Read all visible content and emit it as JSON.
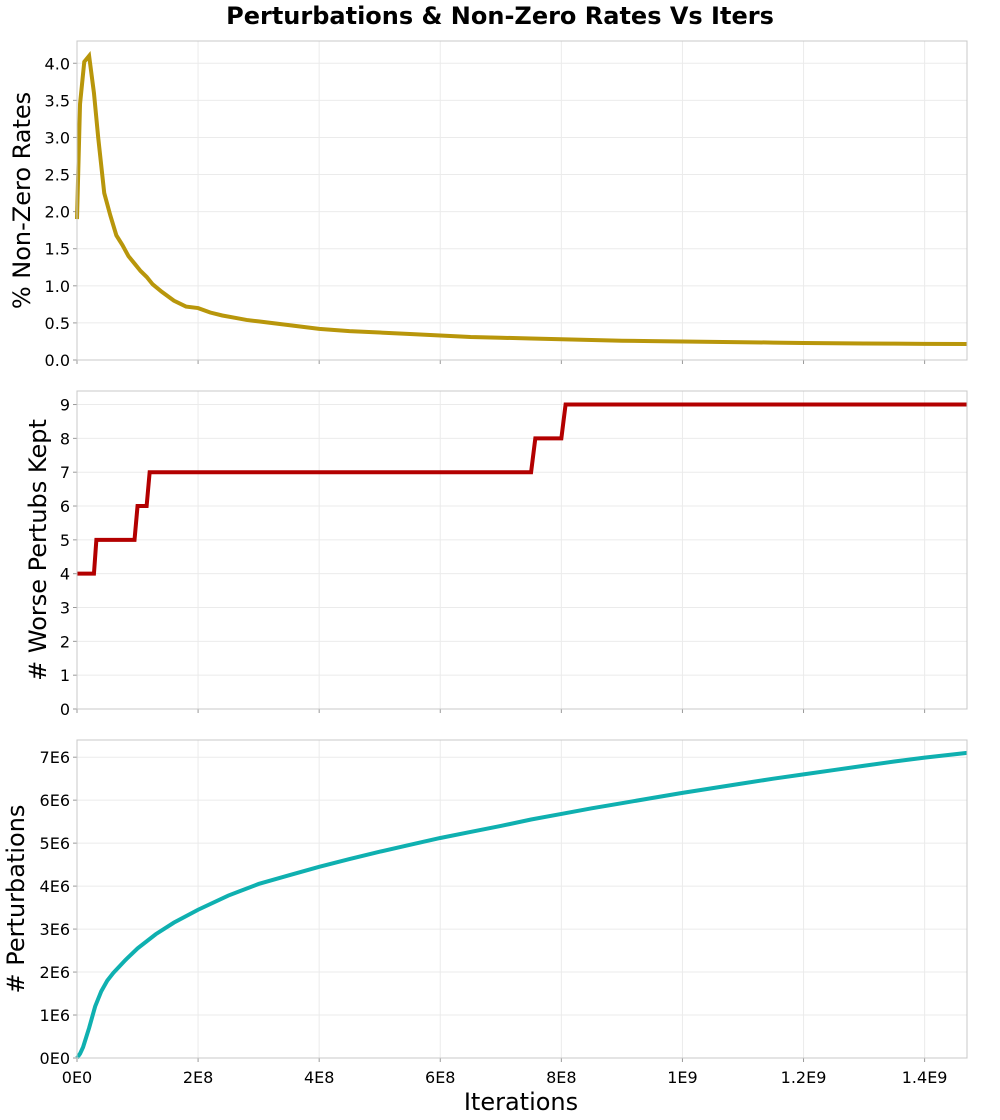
{
  "chart_data": {
    "title": "Perturbations & Non-Zero Rates Vs Iters",
    "xlabel": "Iterations",
    "xlim": [
      0,
      1470000000
    ],
    "xticks": [
      {
        "value": 0,
        "label": "0E0"
      },
      {
        "value": 200000000,
        "label": "2E8"
      },
      {
        "value": 400000000,
        "label": "4E8"
      },
      {
        "value": 600000000,
        "label": "6E8"
      },
      {
        "value": 800000000,
        "label": "8E8"
      },
      {
        "value": 1000000000,
        "label": "1E9"
      },
      {
        "value": 1200000000,
        "label": "1.2E9"
      },
      {
        "value": 1400000000,
        "label": "1.4E9"
      }
    ],
    "grid": true,
    "panels": [
      {
        "type": "line",
        "ylabel": "% Non-Zero Rates",
        "ylim": [
          0,
          4.3
        ],
        "yticks": [
          {
            "value": 0,
            "label": "0.0"
          },
          {
            "value": 0.5,
            "label": "0.5"
          },
          {
            "value": 1,
            "label": "1.0"
          },
          {
            "value": 1.5,
            "label": "1.5"
          },
          {
            "value": 2,
            "label": "2.0"
          },
          {
            "value": 2.5,
            "label": "2.5"
          },
          {
            "value": 3,
            "label": "3.0"
          },
          {
            "value": 3.5,
            "label": "3.5"
          },
          {
            "value": 4,
            "label": "4.0"
          }
        ],
        "color": "#b8960b",
        "points": [
          [
            0,
            1.9
          ],
          [
            5000000,
            3.45
          ],
          [
            12000000,
            4.02
          ],
          [
            20000000,
            4.1
          ],
          [
            28000000,
            3.6
          ],
          [
            35000000,
            3.0
          ],
          [
            45000000,
            2.25
          ],
          [
            55000000,
            1.95
          ],
          [
            65000000,
            1.68
          ],
          [
            75000000,
            1.55
          ],
          [
            85000000,
            1.4
          ],
          [
            95000000,
            1.3
          ],
          [
            105000000,
            1.2
          ],
          [
            115000000,
            1.12
          ],
          [
            125000000,
            1.02
          ],
          [
            140000000,
            0.92
          ],
          [
            160000000,
            0.8
          ],
          [
            180000000,
            0.72
          ],
          [
            200000000,
            0.7
          ],
          [
            220000000,
            0.64
          ],
          [
            240000000,
            0.6
          ],
          [
            260000000,
            0.57
          ],
          [
            280000000,
            0.54
          ],
          [
            300000000,
            0.52
          ],
          [
            330000000,
            0.49
          ],
          [
            360000000,
            0.46
          ],
          [
            400000000,
            0.42
          ],
          [
            450000000,
            0.39
          ],
          [
            500000000,
            0.37
          ],
          [
            550000000,
            0.35
          ],
          [
            600000000,
            0.33
          ],
          [
            650000000,
            0.31
          ],
          [
            700000000,
            0.3
          ],
          [
            750000000,
            0.29
          ],
          [
            800000000,
            0.28
          ],
          [
            850000000,
            0.27
          ],
          [
            900000000,
            0.26
          ],
          [
            950000000,
            0.255
          ],
          [
            1000000000,
            0.25
          ],
          [
            1050000000,
            0.245
          ],
          [
            1100000000,
            0.24
          ],
          [
            1150000000,
            0.235
          ],
          [
            1200000000,
            0.23
          ],
          [
            1250000000,
            0.225
          ],
          [
            1300000000,
            0.222
          ],
          [
            1350000000,
            0.22
          ],
          [
            1400000000,
            0.218
          ],
          [
            1470000000,
            0.215
          ]
        ]
      },
      {
        "type": "line",
        "ylabel": "# Worse Pertubs Kept",
        "ylim": [
          0,
          9.4
        ],
        "yticks": [
          {
            "value": 0,
            "label": "0"
          },
          {
            "value": 1,
            "label": "1"
          },
          {
            "value": 2,
            "label": "2"
          },
          {
            "value": 3,
            "label": "3"
          },
          {
            "value": 4,
            "label": "4"
          },
          {
            "value": 5,
            "label": "5"
          },
          {
            "value": 6,
            "label": "6"
          },
          {
            "value": 7,
            "label": "7"
          },
          {
            "value": 8,
            "label": "8"
          },
          {
            "value": 9,
            "label": "9"
          }
        ],
        "color": "#b30000",
        "points": [
          [
            0,
            4
          ],
          [
            28000000,
            4
          ],
          [
            32000000,
            5
          ],
          [
            95000000,
            5
          ],
          [
            100000000,
            6
          ],
          [
            115000000,
            6
          ],
          [
            120000000,
            7
          ],
          [
            750000000,
            7
          ],
          [
            757000000,
            8
          ],
          [
            800000000,
            8
          ],
          [
            807000000,
            9
          ],
          [
            1470000000,
            9
          ]
        ]
      },
      {
        "type": "line",
        "ylabel": "# Perturbations",
        "ylim": [
          0,
          7400000
        ],
        "yticks": [
          {
            "value": 0,
            "label": "0E0"
          },
          {
            "value": 1000000,
            "label": "1E6"
          },
          {
            "value": 2000000,
            "label": "2E6"
          },
          {
            "value": 3000000,
            "label": "3E6"
          },
          {
            "value": 4000000,
            "label": "4E6"
          },
          {
            "value": 5000000,
            "label": "5E6"
          },
          {
            "value": 6000000,
            "label": "6E6"
          },
          {
            "value": 7000000,
            "label": "7E6"
          }
        ],
        "color": "#0fb0b0",
        "points": [
          [
            0,
            0
          ],
          [
            5000000,
            100000
          ],
          [
            10000000,
            250000
          ],
          [
            20000000,
            700000
          ],
          [
            30000000,
            1200000
          ],
          [
            40000000,
            1550000
          ],
          [
            50000000,
            1800000
          ],
          [
            60000000,
            1980000
          ],
          [
            80000000,
            2280000
          ],
          [
            100000000,
            2550000
          ],
          [
            130000000,
            2880000
          ],
          [
            160000000,
            3150000
          ],
          [
            200000000,
            3450000
          ],
          [
            250000000,
            3780000
          ],
          [
            300000000,
            4050000
          ],
          [
            350000000,
            4250000
          ],
          [
            400000000,
            4450000
          ],
          [
            450000000,
            4630000
          ],
          [
            500000000,
            4800000
          ],
          [
            550000000,
            4960000
          ],
          [
            600000000,
            5120000
          ],
          [
            650000000,
            5260000
          ],
          [
            700000000,
            5400000
          ],
          [
            750000000,
            5550000
          ],
          [
            800000000,
            5680000
          ],
          [
            850000000,
            5810000
          ],
          [
            900000000,
            5930000
          ],
          [
            950000000,
            6050000
          ],
          [
            1000000000,
            6170000
          ],
          [
            1050000000,
            6280000
          ],
          [
            1100000000,
            6390000
          ],
          [
            1150000000,
            6500000
          ],
          [
            1200000000,
            6600000
          ],
          [
            1250000000,
            6700000
          ],
          [
            1300000000,
            6800000
          ],
          [
            1350000000,
            6900000
          ],
          [
            1400000000,
            6990000
          ],
          [
            1470000000,
            7100000
          ]
        ]
      }
    ]
  }
}
